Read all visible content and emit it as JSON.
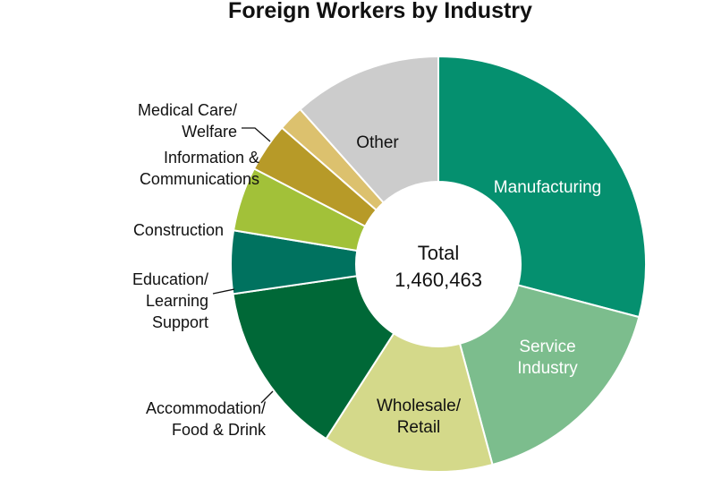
{
  "chart_data": {
    "type": "pie",
    "style": "donut",
    "title": "Foreign Workers by Industry",
    "center_label": [
      "Total",
      "1,460,463"
    ],
    "total": 1460463,
    "slices": [
      {
        "name": "Manufacturing",
        "label_lines": [
          "Manufacturing"
        ],
        "value": 29.1,
        "color": "#05906f",
        "label_color": "#ffffff",
        "label_position": "inside"
      },
      {
        "name": "Service Industry",
        "label_lines": [
          "Service",
          "Industry"
        ],
        "value": 16.7,
        "color": "#7cbd8d",
        "label_color": "#ffffff",
        "label_position": "inside"
      },
      {
        "name": "Wholesale/Retail",
        "label_lines": [
          "Wholesale/",
          "Retail"
        ],
        "value": 13.3,
        "color": "#d4d98a",
        "label_color": "#111111",
        "label_position": "inside"
      },
      {
        "name": "Accommodation/Food & Drink",
        "label_lines": [
          "Accommodation/",
          "Food & Drink"
        ],
        "value": 13.6,
        "color": "#006837",
        "label_color": "#111111",
        "label_position": "outside"
      },
      {
        "name": "Education/Learning Support",
        "label_lines": [
          "Education/",
          "Learning",
          "Support"
        ],
        "value": 4.9,
        "color": "#00725f",
        "label_color": "#111111",
        "label_position": "outside"
      },
      {
        "name": "Construction",
        "label_lines": [
          "Construction"
        ],
        "value": 5.0,
        "color": "#a2c139",
        "label_color": "#111111",
        "label_position": "outside"
      },
      {
        "name": "Information & Communications",
        "label_lines": [
          "Information &",
          "Communications"
        ],
        "value": 3.8,
        "color": "#b79a28",
        "label_color": "#111111",
        "label_position": "outside"
      },
      {
        "name": "Medical Care/Welfare",
        "label_lines": [
          "Medical Care/",
          "Welfare"
        ],
        "value": 2.0,
        "color": "#dcc16e",
        "label_color": "#111111",
        "label_position": "outside"
      },
      {
        "name": "Other",
        "label_lines": [
          "Other"
        ],
        "value": 11.6,
        "color": "#cccccc",
        "label_color": "#111111",
        "label_position": "inside"
      }
    ]
  }
}
